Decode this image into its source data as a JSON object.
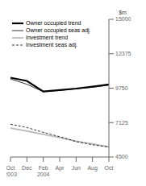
{
  "chart_data": {
    "type": "line",
    "ylabel": "$m",
    "categories": [
      "Oct\n2003",
      "Dec",
      "Feb\n2004",
      "Apr",
      "Jun",
      "Aug",
      "Oct"
    ],
    "series": [
      {
        "name": "Owner occupied trend",
        "color": "#000000",
        "line_style": "solid",
        "values": [
          10550,
          10300,
          9500,
          9600,
          9720,
          9870,
          10030
        ]
      },
      {
        "name": "Owner occupied seas adj.",
        "color": "#000000",
        "line_style": "solid",
        "values": [
          10450,
          10050,
          9480,
          9580,
          9700,
          9820,
          9980
        ]
      },
      {
        "name": "Investment trend",
        "color": "#bbbbbb",
        "line_style": "solid",
        "values": [
          6700,
          6480,
          6220,
          5980,
          5700,
          5500,
          5280
        ]
      },
      {
        "name": "Investment seas adj.",
        "color": "#000000",
        "line_style": "dashed",
        "values": [
          7000,
          6750,
          6380,
          6050,
          5680,
          5430,
          5260
        ]
      }
    ],
    "ylim": [
      4500,
      15000
    ],
    "yticks": [
      4500,
      7125,
      9750,
      12375,
      15000
    ],
    "grid": false,
    "legend": "upper left"
  }
}
